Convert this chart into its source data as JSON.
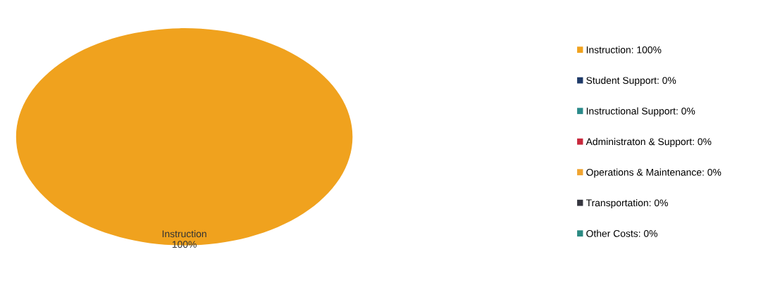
{
  "chart_data": {
    "type": "pie",
    "categories": [
      "Instruction: 100%",
      "Student Support: 0%",
      "Instructional Support: 0%",
      "Administraton & Support: 0%",
      "Operations & Maintenance: 0%",
      "Transportation: 0%",
      "Other Costs: 0%"
    ],
    "values": [
      100,
      0,
      0,
      0,
      0,
      0,
      0
    ],
    "colors": [
      "#f0a21e",
      "#1f3a68",
      "#2a8a8a",
      "#c8283c",
      "#f0a430",
      "#35363f",
      "#2b8a82"
    ],
    "annotations": [
      "Instruction\n100%"
    ],
    "legend": "right"
  }
}
